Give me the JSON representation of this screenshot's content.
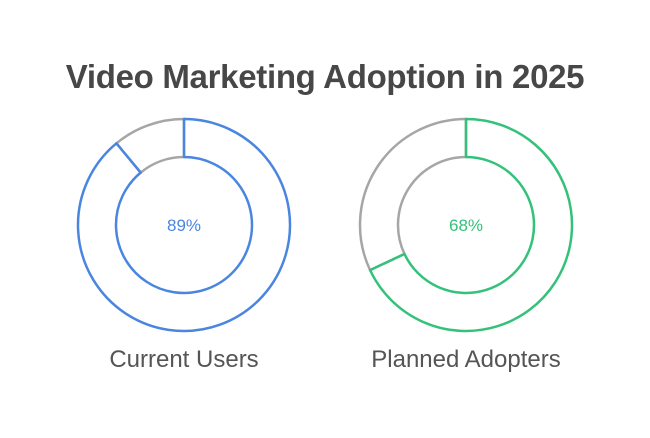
{
  "title": "Video Marketing Adoption in 2025",
  "colors": {
    "blue": "#4a86e0",
    "green": "#34c27a",
    "grey": "#a6a6a6",
    "title": "#474747",
    "label": "#555555"
  },
  "chart_data": {
    "type": "pie",
    "subtype": "donut",
    "title": "Video Marketing Adoption in 2025",
    "charts": [
      {
        "label": "Current Users",
        "value": 89,
        "value_label": "89%",
        "remainder": 11,
        "color": "#4a86e0"
      },
      {
        "label": "Planned Adopters",
        "value": 68,
        "value_label": "68%",
        "remainder": 32,
        "color": "#34c27a"
      }
    ],
    "legend": "none",
    "grid": false
  },
  "donuts": [
    {
      "label": "Current Users",
      "value_label": "89%"
    },
    {
      "label": "Planned Adopters",
      "value_label": "68%"
    }
  ]
}
